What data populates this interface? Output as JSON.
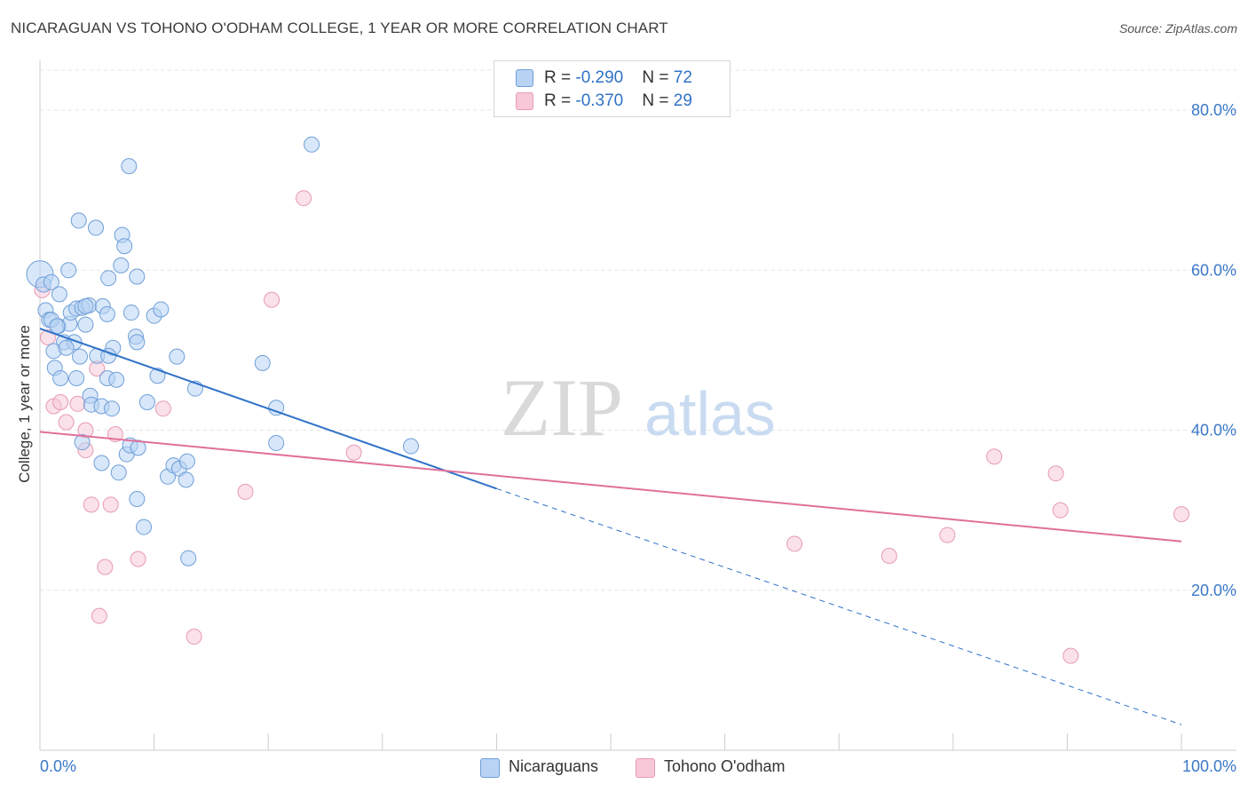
{
  "header": {
    "title": "NICARAGUAN VS TOHONO O'ODHAM COLLEGE, 1 YEAR OR MORE CORRELATION CHART",
    "source": "Source: ZipAtlas.com"
  },
  "legend": {
    "series": [
      {
        "r_label": "R = ",
        "r_value": "-0.290",
        "n_label": "N = ",
        "n_value": "72"
      },
      {
        "r_label": "R = ",
        "r_value": "-0.370",
        "n_label": "N = ",
        "n_value": "29"
      }
    ]
  },
  "watermark": {
    "zip": "ZIP",
    "atlas": "atlas"
  },
  "colors": {
    "blue_fill": "#b8d3f4",
    "blue_stroke": "#6f9fd8",
    "blue_line": "#2f72c8",
    "pink_fill": "#f8c8d8",
    "pink_stroke": "#e79ab5",
    "pink_line": "#e0709a",
    "axis_label": "#3a78c9",
    "grid": "#e6e6e6"
  },
  "chart_data": {
    "type": "scatter",
    "title": "NICARAGUAN VS TOHONO O'ODHAM COLLEGE, 1 YEAR OR MORE CORRELATION CHART",
    "xlabel": "",
    "ylabel": "College, 1 year or more",
    "xlim": [
      0,
      100
    ],
    "ylim": [
      0,
      85
    ],
    "x_tick_labels": [
      {
        "value": 0,
        "label": "0.0%"
      },
      {
        "value": 100,
        "label": "100.0%"
      }
    ],
    "y_tick_labels": [
      {
        "value": 20,
        "label": "20.0%"
      },
      {
        "value": 40,
        "label": "40.0%"
      },
      {
        "value": 60,
        "label": "60.0%"
      },
      {
        "value": 80,
        "label": "80.0%"
      }
    ],
    "series": [
      {
        "name": "Nicaraguans",
        "color": "#6f9fd8",
        "trend": {
          "x0": 0,
          "y0": 52.7,
          "x1": 40,
          "y1": 32.7,
          "dashed_to_x": 100,
          "dashed_to_y": 3.2
        },
        "points": [
          [
            0.0,
            59.5
          ],
          [
            0.3,
            58.2
          ],
          [
            1.0,
            58.5
          ],
          [
            1.7,
            57.0
          ],
          [
            2.5,
            60.0
          ],
          [
            0.5,
            55.0
          ],
          [
            0.8,
            53.8
          ],
          [
            1.6,
            53.0
          ],
          [
            2.6,
            53.3
          ],
          [
            2.7,
            54.7
          ],
          [
            3.2,
            55.2
          ],
          [
            3.7,
            55.3
          ],
          [
            4.3,
            55.6
          ],
          [
            5.5,
            55.5
          ],
          [
            5.9,
            54.5
          ],
          [
            8.0,
            54.7
          ],
          [
            10.0,
            54.3
          ],
          [
            10.6,
            55.1
          ],
          [
            2.1,
            51.0
          ],
          [
            1.2,
            49.9
          ],
          [
            3.0,
            51.0
          ],
          [
            4.0,
            53.2
          ],
          [
            6.4,
            50.3
          ],
          [
            8.4,
            51.7
          ],
          [
            8.5,
            51.0
          ],
          [
            1.3,
            47.8
          ],
          [
            1.8,
            46.5
          ],
          [
            3.2,
            46.5
          ],
          [
            5.0,
            49.3
          ],
          [
            6.0,
            49.3
          ],
          [
            5.9,
            46.5
          ],
          [
            6.7,
            46.3
          ],
          [
            10.3,
            46.8
          ],
          [
            12.0,
            49.2
          ],
          [
            13.6,
            45.2
          ],
          [
            4.4,
            44.3
          ],
          [
            4.5,
            43.2
          ],
          [
            5.4,
            43.0
          ],
          [
            6.3,
            42.7
          ],
          [
            9.4,
            43.5
          ],
          [
            3.7,
            38.5
          ],
          [
            5.4,
            35.9
          ],
          [
            6.9,
            34.7
          ],
          [
            7.6,
            37.0
          ],
          [
            7.9,
            38.1
          ],
          [
            8.6,
            37.8
          ],
          [
            11.2,
            34.2
          ],
          [
            11.7,
            35.6
          ],
          [
            12.2,
            35.2
          ],
          [
            12.8,
            33.8
          ],
          [
            12.9,
            36.1
          ],
          [
            8.5,
            31.4
          ],
          [
            9.1,
            27.9
          ],
          [
            13.0,
            24.0
          ],
          [
            19.5,
            48.4
          ],
          [
            20.7,
            42.8
          ],
          [
            20.7,
            38.4
          ],
          [
            32.5,
            38.0
          ],
          [
            3.4,
            66.2
          ],
          [
            4.9,
            65.3
          ],
          [
            7.2,
            64.4
          ],
          [
            7.4,
            63.0
          ],
          [
            7.1,
            60.6
          ],
          [
            6.0,
            59.0
          ],
          [
            8.5,
            59.2
          ],
          [
            7.8,
            73.0
          ],
          [
            23.8,
            75.7
          ],
          [
            1.0,
            53.8
          ],
          [
            3.5,
            49.2
          ],
          [
            2.3,
            50.3
          ],
          [
            1.5,
            53.0
          ],
          [
            4.0,
            55.5
          ]
        ]
      },
      {
        "name": "Tohono O'odham",
        "color": "#e79ab5",
        "trend": {
          "x0": 0,
          "y0": 39.8,
          "x1": 100,
          "y1": 26.1
        },
        "points": [
          [
            0.2,
            57.5
          ],
          [
            0.7,
            51.6
          ],
          [
            1.2,
            43.0
          ],
          [
            1.8,
            43.5
          ],
          [
            2.3,
            41.0
          ],
          [
            3.3,
            43.3
          ],
          [
            4.0,
            37.5
          ],
          [
            4.0,
            40.0
          ],
          [
            4.5,
            30.7
          ],
          [
            5.0,
            47.7
          ],
          [
            6.2,
            30.7
          ],
          [
            6.6,
            39.5
          ],
          [
            5.7,
            22.9
          ],
          [
            5.2,
            16.8
          ],
          [
            8.6,
            23.9
          ],
          [
            10.8,
            42.7
          ],
          [
            13.5,
            14.2
          ],
          [
            18.0,
            32.3
          ],
          [
            20.3,
            56.3
          ],
          [
            23.1,
            69.0
          ],
          [
            27.5,
            37.2
          ],
          [
            66.1,
            25.8
          ],
          [
            74.4,
            24.3
          ],
          [
            79.5,
            26.9
          ],
          [
            83.6,
            36.7
          ],
          [
            89.0,
            34.6
          ],
          [
            89.4,
            30.0
          ],
          [
            90.3,
            11.8
          ],
          [
            100.0,
            29.5
          ]
        ]
      }
    ]
  },
  "bottom_legend": {
    "items": [
      {
        "label": "Nicaraguans"
      },
      {
        "label": "Tohono O'odham"
      }
    ]
  }
}
